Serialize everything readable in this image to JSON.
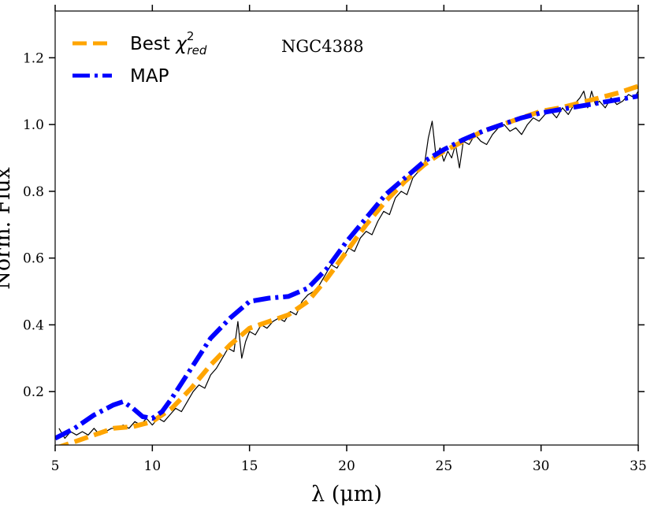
{
  "chart_data": {
    "type": "line",
    "title": "",
    "xlabel": "λ (μm)",
    "ylabel": "Norm. Flux",
    "xlim": [
      5,
      35
    ],
    "ylim": [
      0.04,
      1.34
    ],
    "xticks": [
      5,
      10,
      15,
      20,
      25,
      30,
      35
    ],
    "xtick_labels": [
      "5",
      "10",
      "15",
      "20",
      "25",
      "30",
      "35"
    ],
    "yticks": [
      0.2,
      0.4,
      0.6,
      0.8,
      1.0,
      1.2
    ],
    "ytick_labels": [
      "0.2",
      "0.4",
      "0.6",
      "0.8",
      "1.0",
      "1.2"
    ],
    "annotation": "NGC4388",
    "legend": {
      "placement": "top-left",
      "entries": [
        {
          "label_main": "Best ",
          "label_sym": "χ",
          "label_sup": "2",
          "label_sub": "red",
          "series": "best"
        },
        {
          "label_main": "MAP",
          "series": "map"
        }
      ]
    },
    "series": [
      {
        "key": "observed",
        "color": "#000000",
        "style": "solid-thin",
        "x": [
          5.2,
          5.5,
          5.8,
          6.1,
          6.4,
          6.7,
          7.0,
          7.3,
          7.6,
          7.9,
          8.2,
          8.5,
          8.8,
          9.1,
          9.4,
          9.7,
          10.0,
          10.3,
          10.6,
          10.9,
          11.2,
          11.5,
          11.8,
          12.1,
          12.4,
          12.7,
          13.0,
          13.3,
          13.6,
          13.9,
          14.2,
          14.4,
          14.6,
          14.8,
          15.0,
          15.3,
          15.6,
          15.9,
          16.2,
          16.5,
          16.8,
          17.1,
          17.4,
          17.7,
          18.0,
          18.3,
          18.6,
          18.9,
          19.2,
          19.5,
          19.8,
          20.1,
          20.4,
          20.7,
          21.0,
          21.3,
          21.6,
          21.9,
          22.2,
          22.5,
          22.8,
          23.1,
          23.4,
          23.7,
          24.0,
          24.2,
          24.4,
          24.6,
          24.8,
          25.0,
          25.2,
          25.4,
          25.6,
          25.8,
          26.0,
          26.3,
          26.6,
          26.9,
          27.2,
          27.5,
          27.8,
          28.1,
          28.4,
          28.7,
          29.0,
          29.3,
          29.6,
          29.9,
          30.2,
          30.5,
          30.8,
          31.1,
          31.4,
          31.7,
          32.0,
          32.2,
          32.4,
          32.6,
          32.8,
          33.0,
          33.3,
          33.6,
          33.9,
          34.2,
          34.5,
          34.8,
          35.0
        ],
        "y": [
          0.09,
          0.06,
          0.08,
          0.07,
          0.08,
          0.07,
          0.09,
          0.07,
          0.08,
          0.09,
          0.09,
          0.1,
          0.09,
          0.11,
          0.1,
          0.12,
          0.1,
          0.12,
          0.11,
          0.13,
          0.15,
          0.14,
          0.17,
          0.2,
          0.22,
          0.21,
          0.25,
          0.27,
          0.3,
          0.33,
          0.32,
          0.41,
          0.3,
          0.35,
          0.38,
          0.37,
          0.4,
          0.39,
          0.41,
          0.42,
          0.41,
          0.44,
          0.43,
          0.47,
          0.49,
          0.5,
          0.52,
          0.55,
          0.58,
          0.57,
          0.6,
          0.63,
          0.62,
          0.66,
          0.68,
          0.67,
          0.71,
          0.74,
          0.73,
          0.78,
          0.8,
          0.79,
          0.84,
          0.86,
          0.88,
          0.96,
          1.01,
          0.9,
          0.93,
          0.89,
          0.92,
          0.9,
          0.94,
          0.87,
          0.95,
          0.94,
          0.97,
          0.95,
          0.94,
          0.97,
          0.99,
          1.0,
          0.98,
          0.99,
          0.97,
          1.0,
          1.02,
          1.01,
          1.03,
          1.04,
          1.02,
          1.05,
          1.03,
          1.06,
          1.08,
          1.1,
          1.05,
          1.1,
          1.06,
          1.07,
          1.05,
          1.08,
          1.06,
          1.07,
          1.09,
          1.08,
          1.1
        ]
      },
      {
        "key": "best",
        "name": "Best χ²red",
        "color": "#FFA500",
        "style": "dashed-thick",
        "x": [
          5.0,
          6.0,
          7.0,
          8.0,
          9.0,
          10.0,
          11.0,
          12.0,
          13.0,
          14.0,
          15.0,
          16.0,
          17.0,
          18.0,
          19.0,
          20.0,
          21.0,
          22.0,
          23.0,
          24.0,
          25.0,
          26.0,
          27.0,
          28.0,
          29.0,
          30.0,
          31.0,
          32.0,
          33.0,
          34.0,
          35.0
        ],
        "y": [
          0.03,
          0.05,
          0.07,
          0.09,
          0.095,
          0.11,
          0.15,
          0.21,
          0.28,
          0.34,
          0.39,
          0.41,
          0.43,
          0.47,
          0.54,
          0.62,
          0.7,
          0.77,
          0.83,
          0.88,
          0.92,
          0.95,
          0.98,
          1.0,
          1.02,
          1.04,
          1.05,
          1.065,
          1.08,
          1.095,
          1.115
        ]
      },
      {
        "key": "map",
        "name": "MAP",
        "color": "#0000FF",
        "style": "dashdot-thick",
        "x": [
          5.0,
          6.0,
          7.0,
          8.0,
          8.5,
          9.0,
          9.5,
          10.0,
          10.5,
          11.0,
          12.0,
          13.0,
          14.0,
          15.0,
          16.0,
          17.0,
          18.0,
          19.0,
          20.0,
          21.0,
          22.0,
          23.0,
          24.0,
          25.0,
          26.0,
          27.0,
          28.0,
          29.0,
          30.0,
          31.0,
          32.0,
          33.0,
          34.0,
          35.0
        ],
        "y": [
          0.06,
          0.09,
          0.13,
          0.16,
          0.17,
          0.15,
          0.125,
          0.12,
          0.14,
          0.18,
          0.27,
          0.36,
          0.42,
          0.47,
          0.48,
          0.485,
          0.51,
          0.57,
          0.65,
          0.72,
          0.79,
          0.84,
          0.89,
          0.925,
          0.955,
          0.98,
          1.0,
          1.02,
          1.035,
          1.045,
          1.055,
          1.065,
          1.075,
          1.085
        ]
      }
    ]
  }
}
